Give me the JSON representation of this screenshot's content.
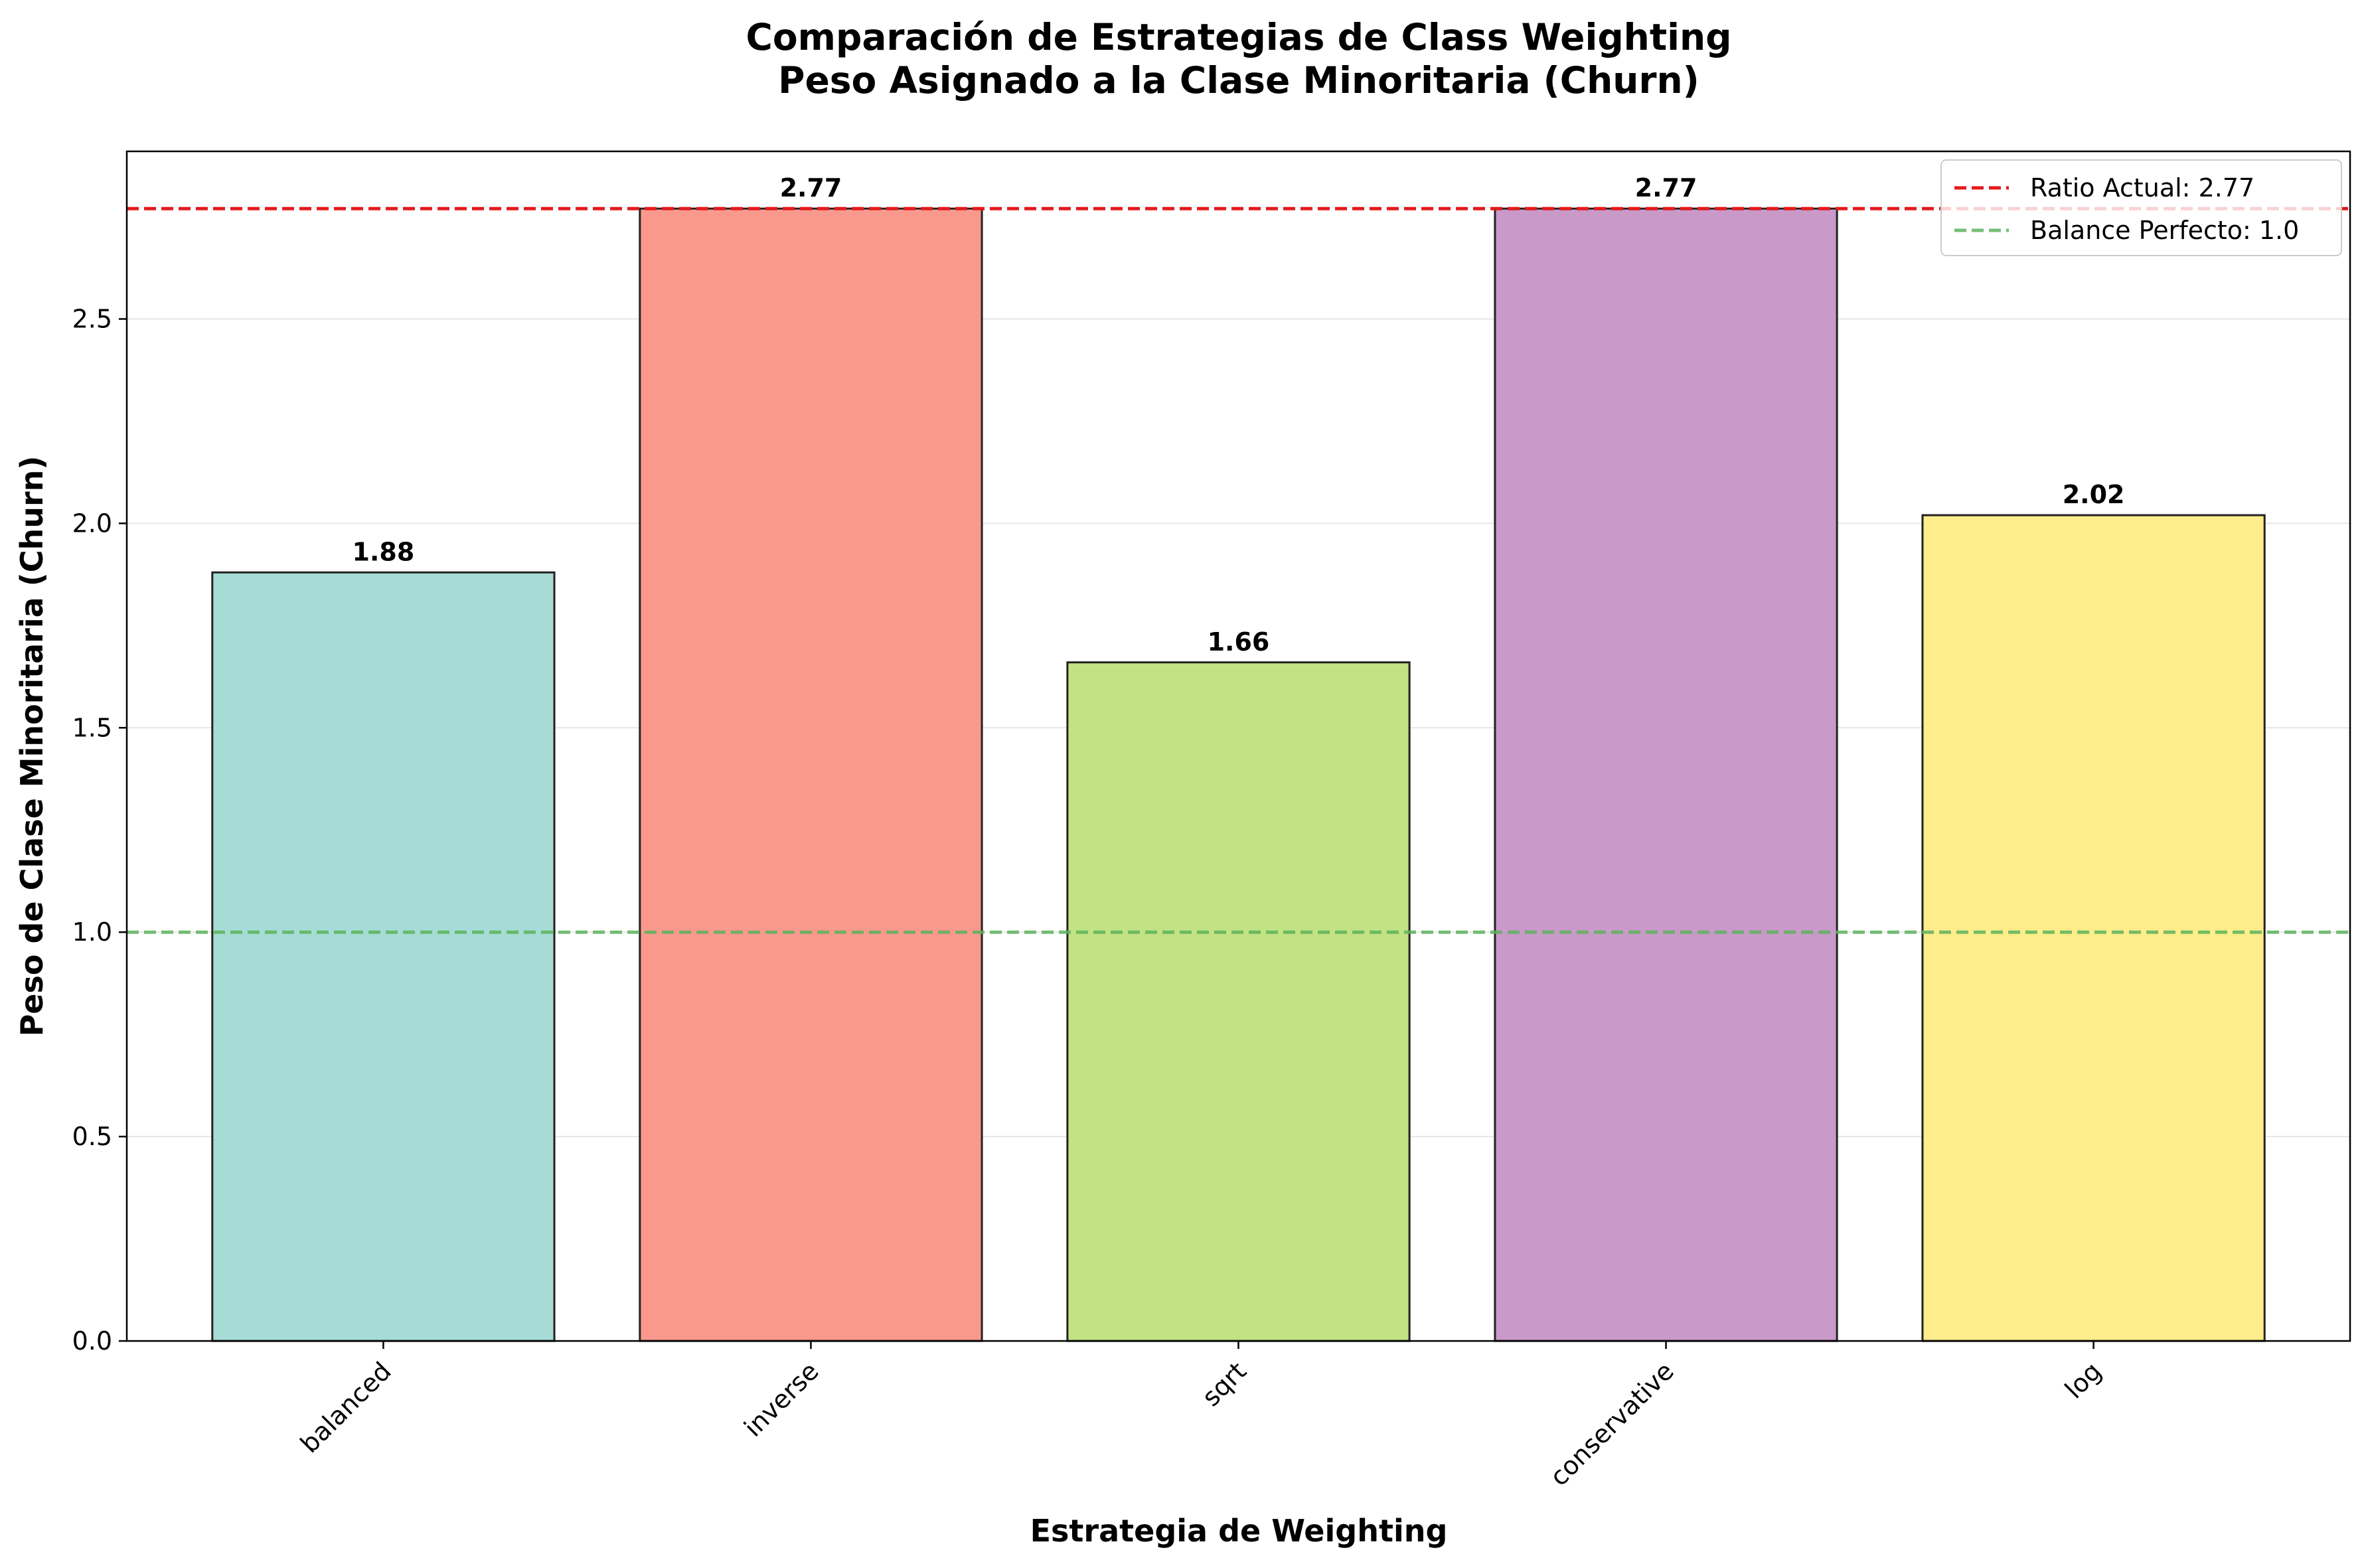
{
  "chart_data": {
    "type": "bar",
    "title_line1": "Comparación de Estrategias de Class Weighting",
    "title_line2": "Peso Asignado a la Clase Minoritaria (Churn)",
    "xlabel": "Estrategia de Weighting",
    "ylabel": "Peso de Clase Minoritaria (Churn)",
    "categories": [
      "balanced",
      "inverse",
      "sqrt",
      "conservative",
      "log"
    ],
    "values": [
      1.88,
      2.77,
      1.66,
      2.77,
      2.02
    ],
    "value_labels": [
      "1.88",
      "2.77",
      "1.66",
      "2.77",
      "2.02"
    ],
    "bar_colors": [
      "#a6dcd5",
      "#f9998e",
      "#c2e283",
      "#c999c9",
      "#feed8a"
    ],
    "ylim": [
      0,
      2.91
    ],
    "yticks": [
      0.0,
      0.5,
      1.0,
      1.5,
      2.0,
      2.5
    ],
    "ytick_labels": [
      "0.0",
      "0.5",
      "1.0",
      "1.5",
      "2.0",
      "2.5"
    ],
    "grid": "horizontal",
    "legend_position": "top-right",
    "reference_lines": [
      {
        "label": "Ratio Actual: 2.77",
        "value": 2.77,
        "color": "#e41a1c",
        "style": "dashed"
      },
      {
        "label": "Balance Perfecto: 1.0",
        "value": 1.0,
        "color": "#5cb35c",
        "style": "dashed"
      }
    ]
  }
}
